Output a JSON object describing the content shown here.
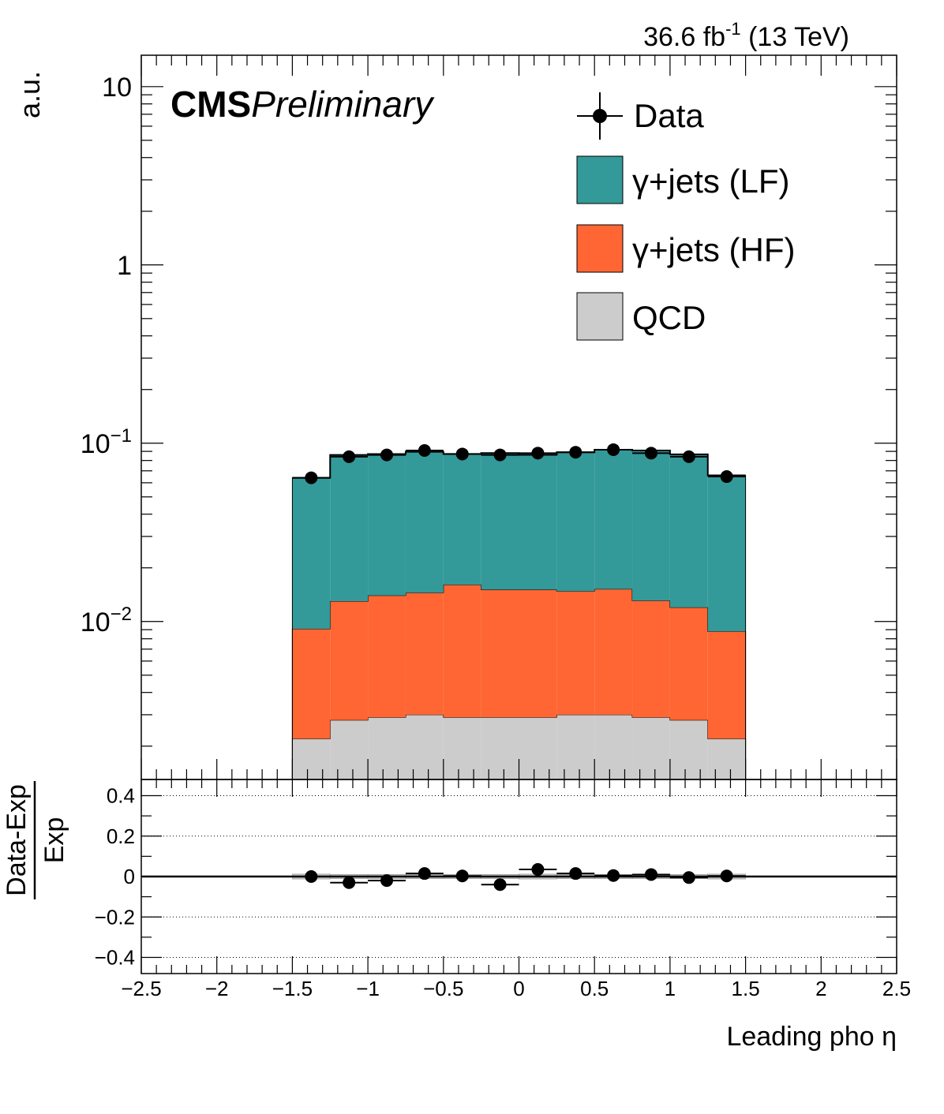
{
  "lumi_label": {
    "value": "36.6 fb",
    "sup": "-1",
    "energy": "(13 TeV)"
  },
  "cms_label": {
    "bold": "CMS",
    "italic": "Preliminary"
  },
  "chart_data": [
    {
      "type": "bar",
      "stacked": true,
      "ylog": true,
      "ylabel": "a.u.",
      "ylim": [
        0.0013,
        15
      ],
      "xlim": [
        -2.5,
        2.5
      ],
      "y_ticks": [
        {
          "label": "10",
          "sup": ""
        },
        {
          "label": "1",
          "sup": ""
        },
        {
          "label": "10",
          "sup": "−1"
        },
        {
          "label": "10",
          "sup": "−2"
        }
      ],
      "bin_edges": [
        -1.5,
        -1.25,
        -1.0,
        -0.75,
        -0.5,
        -0.25,
        0.0,
        0.25,
        0.5,
        0.75,
        1.0,
        1.25,
        1.5
      ],
      "series": [
        {
          "name": "QCD",
          "color": "#cccccc",
          "values": [
            0.0022,
            0.0028,
            0.0029,
            0.003,
            0.0029,
            0.0029,
            0.0029,
            0.003,
            0.003,
            0.0029,
            0.0028,
            0.0022
          ]
        },
        {
          "name": "γ+jets (HF)",
          "color": "#ff6633",
          "values": [
            0.0069,
            0.0102,
            0.0111,
            0.0115,
            0.0132,
            0.0122,
            0.0122,
            0.0118,
            0.0122,
            0.0102,
            0.0092,
            0.0066
          ]
        },
        {
          "name": "γ+jets (LF)",
          "color": "#339999",
          "values": [
            0.0549,
            0.073,
            0.073,
            0.075,
            0.071,
            0.073,
            0.071,
            0.0742,
            0.0768,
            0.0779,
            0.0746,
            0.0572
          ]
        }
      ],
      "total_values": [
        0.064,
        0.086,
        0.087,
        0.0895,
        0.0871,
        0.0881,
        0.0861,
        0.089,
        0.092,
        0.091,
        0.0866,
        0.066
      ],
      "data": {
        "name": "Data",
        "x": [
          -1.375,
          -1.125,
          -0.875,
          -0.625,
          -0.375,
          -0.125,
          0.125,
          0.375,
          0.625,
          0.875,
          1.125,
          1.375
        ],
        "y": [
          0.064,
          0.084,
          0.086,
          0.091,
          0.087,
          0.086,
          0.088,
          0.089,
          0.092,
          0.088,
          0.084,
          0.065
        ]
      },
      "legend": {
        "position": "top-right",
        "entries": [
          "Data",
          "γ+jets (LF)",
          "γ+jets (HF)",
          "QCD"
        ]
      }
    },
    {
      "type": "scatter",
      "title": "",
      "ylabel_num": "Data-Exp",
      "ylabel_den": "Exp",
      "xlabel": "Leading pho η",
      "xlim": [
        -2.5,
        2.5
      ],
      "ylim": [
        -0.48,
        0.48
      ],
      "y_ticks": [
        "0.4",
        "0.2",
        "0",
        "−0.2",
        "−0.4"
      ],
      "x_ticks": [
        "−2.5",
        "−2",
        "−1.5",
        "−1",
        "−0.5",
        "0",
        "0.5",
        "1",
        "1.5",
        "2",
        "2.5"
      ],
      "grid_y": true,
      "x": [
        -1.375,
        -1.125,
        -0.875,
        -0.625,
        -0.375,
        -0.125,
        0.125,
        0.375,
        0.625,
        0.875,
        1.125,
        1.375
      ],
      "y": [
        0.0,
        -0.03,
        -0.02,
        0.015,
        0.003,
        -0.04,
        0.035,
        0.015,
        0.005,
        0.01,
        -0.005,
        0.003
      ],
      "unc": [
        0.012,
        0.01,
        0.01,
        0.01,
        0.01,
        0.01,
        0.012,
        0.01,
        0.01,
        0.01,
        0.01,
        0.012
      ]
    }
  ]
}
